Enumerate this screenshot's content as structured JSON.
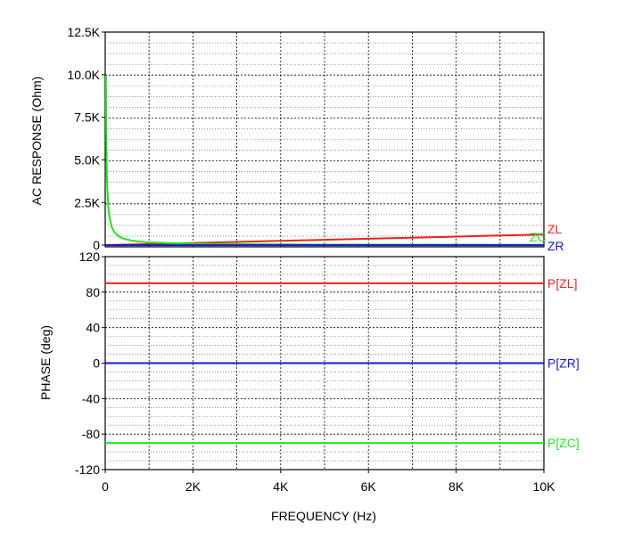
{
  "chart_data": [
    {
      "type": "line",
      "ylabel": "AC RESPONSE  (Ohm)",
      "xlim": [
        0,
        10000
      ],
      "ylim": [
        -100,
        12500
      ],
      "y_ticks": [
        {
          "value": 12500,
          "label": "12.5K"
        },
        {
          "value": 10000,
          "label": "10.0K"
        },
        {
          "value": 7500,
          "label": "7.5K"
        },
        {
          "value": 5000,
          "label": "5.0K"
        },
        {
          "value": 2500,
          "label": "2.5K"
        },
        {
          "value": 0,
          "label": "0"
        }
      ],
      "grid": true,
      "series": [
        {
          "name": "ZL",
          "color": "#e8231c",
          "x": [
            0,
            1000,
            2000,
            3000,
            4000,
            5000,
            6000,
            7000,
            8000,
            9000,
            10000
          ],
          "y": [
            0,
            63,
            126,
            189,
            251,
            314,
            377,
            440,
            503,
            565,
            628
          ]
        },
        {
          "name": "ZC",
          "color": "#1ee51e",
          "x": [
            16,
            20,
            30,
            40,
            50,
            60,
            80,
            100,
            150,
            200,
            300,
            400,
            600,
            800,
            1000,
            2000,
            5000,
            10000
          ],
          "y": [
            9947,
            7958,
            5305,
            3979,
            3183,
            2653,
            1989,
            1592,
            1061,
            796,
            531,
            398,
            265,
            199,
            159,
            80,
            32,
            16
          ]
        },
        {
          "name": "ZR",
          "color": "#1616d8",
          "x": [
            0,
            10000
          ],
          "y": [
            0,
            0
          ]
        }
      ]
    },
    {
      "type": "line",
      "xlabel": "FREQUENCY  (Hz)",
      "ylabel": "PHASE  (deg)",
      "xlim": [
        0,
        10000
      ],
      "ylim": [
        -120,
        120
      ],
      "x_ticks": [
        {
          "value": 0,
          "label": "0"
        },
        {
          "value": 2000,
          "label": "2K"
        },
        {
          "value": 4000,
          "label": "4K"
        },
        {
          "value": 6000,
          "label": "6K"
        },
        {
          "value": 8000,
          "label": "8K"
        },
        {
          "value": 10000,
          "label": "10K"
        }
      ],
      "y_ticks": [
        {
          "value": 120,
          "label": "120"
        },
        {
          "value": 80,
          "label": "80"
        },
        {
          "value": 40,
          "label": "40"
        },
        {
          "value": 0,
          "label": "0"
        },
        {
          "value": -40,
          "label": "-40"
        },
        {
          "value": -80,
          "label": "-80"
        },
        {
          "value": -120,
          "label": "-120"
        }
      ],
      "grid": true,
      "series": [
        {
          "name": "P[ZL]",
          "color": "#e8231c",
          "x": [
            0,
            10000
          ],
          "y": [
            90,
            90
          ]
        },
        {
          "name": "P[ZR]",
          "color": "#1616d8",
          "x": [
            0,
            10000
          ],
          "y": [
            0,
            0
          ]
        },
        {
          "name": "P[ZC]",
          "color": "#1ee51e",
          "x": [
            0,
            10000
          ],
          "y": [
            -90,
            -90
          ]
        }
      ]
    }
  ]
}
